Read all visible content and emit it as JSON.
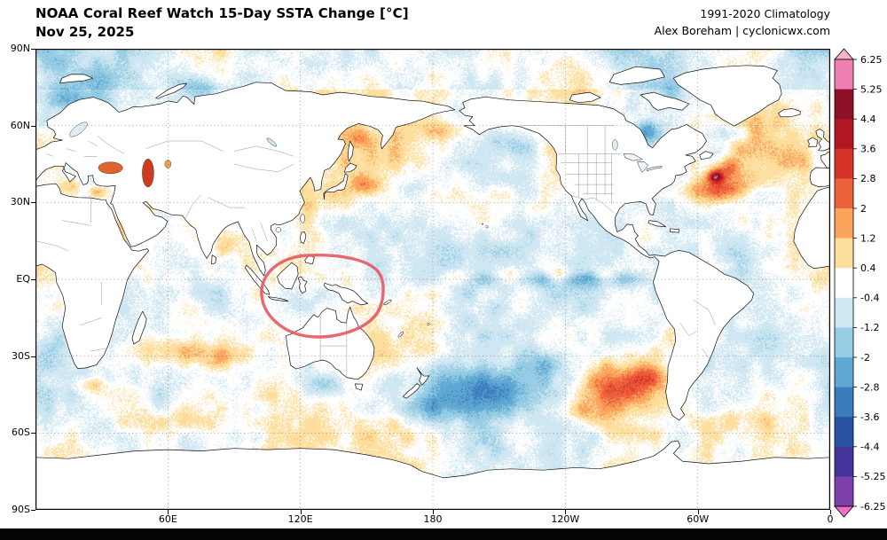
{
  "header": {
    "title": "NOAA Coral Reef Watch 15-Day SSTA Change [°C]",
    "date": "Nov 25, 2025",
    "climatology": "1991-2020 Climatology",
    "credit": "Alex Boreham | cyclonicwx.com"
  },
  "map": {
    "lat_ticks": [
      {
        "label": "90N",
        "lat": 90
      },
      {
        "label": "60N",
        "lat": 60
      },
      {
        "label": "30N",
        "lat": 30
      },
      {
        "label": "EQ",
        "lat": 0
      },
      {
        "label": "30S",
        "lat": -30
      },
      {
        "label": "60S",
        "lat": -60
      },
      {
        "label": "90S",
        "lat": -90
      }
    ],
    "lon_ticks": [
      {
        "label": "60E",
        "lon": 60
      },
      {
        "label": "120E",
        "lon": 120
      },
      {
        "label": "180",
        "lon": 180
      },
      {
        "label": "120W",
        "lon": 240
      },
      {
        "label": "60W",
        "lon": 300
      },
      {
        "label": "0",
        "lon": 360
      }
    ],
    "land_color": "#ffffff",
    "outline_color": "#111111"
  },
  "colorbar": {
    "tick_labels": [
      "6.25",
      "5.25",
      "4.4",
      "3.6",
      "2.8",
      "2",
      "1.2",
      "0.4",
      "-0.4",
      "-1.2",
      "-2",
      "-2.8",
      "-3.6",
      "-4.4",
      "-5.25",
      "-6.25"
    ],
    "colors_top_to_bottom": [
      "#f7b3ca",
      "#ef7fb2",
      "#8e0f26",
      "#b11623",
      "#d73227",
      "#ee613d",
      "#fba55c",
      "#fede9c",
      "#ffffff",
      "#cfe7f2",
      "#97cde4",
      "#5fa8d3",
      "#3b7cbd",
      "#2a52a2",
      "#45339b",
      "#7d3fa8",
      "#ef6fc5"
    ]
  },
  "annotation": {
    "color": "#e85964",
    "shape": "hand-drawn oval highlight"
  }
}
